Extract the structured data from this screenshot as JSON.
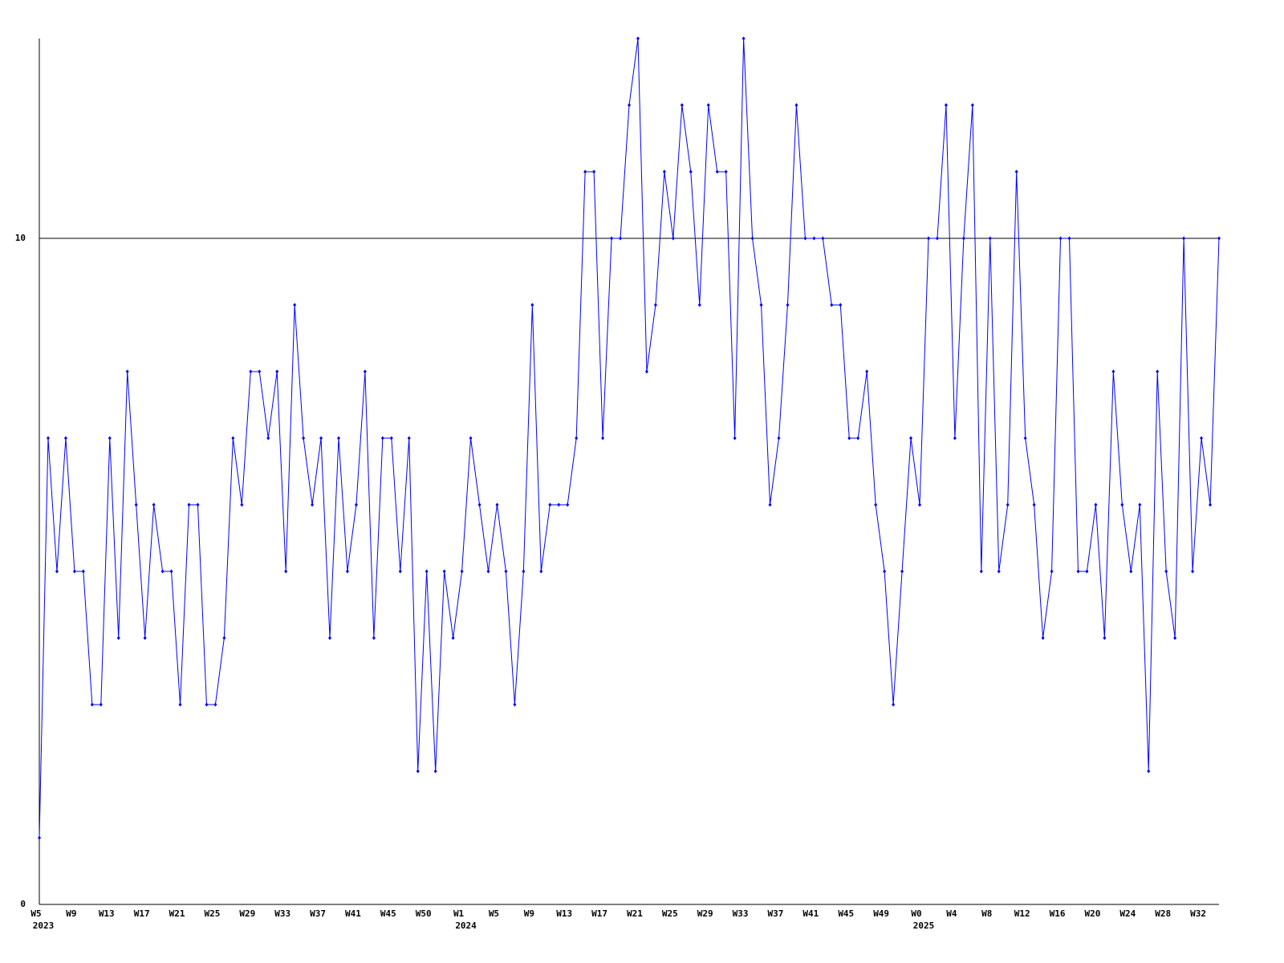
{
  "chart_data": {
    "type": "line",
    "categories": [
      "W5",
      null,
      null,
      null,
      "W9",
      null,
      null,
      null,
      "W13",
      null,
      null,
      null,
      "W17",
      null,
      null,
      null,
      "W21",
      null,
      null,
      null,
      "W25",
      null,
      null,
      null,
      "W29",
      null,
      null,
      null,
      "W33",
      null,
      null,
      null,
      "W37",
      null,
      null,
      null,
      "W41",
      null,
      null,
      null,
      "W45",
      null,
      null,
      null,
      "W50",
      null,
      null,
      null,
      "W1",
      null,
      null,
      null,
      "W5",
      null,
      null,
      null,
      "W9",
      null,
      null,
      null,
      "W13",
      null,
      null,
      null,
      "W17",
      null,
      null,
      null,
      "W21",
      null,
      null,
      null,
      "W25",
      null,
      null,
      null,
      "W29",
      null,
      null,
      null,
      "W33",
      null,
      null,
      null,
      "W37",
      null,
      null,
      null,
      "W41",
      null,
      null,
      null,
      "W45",
      null,
      null,
      null,
      "W49",
      null,
      null,
      null,
      "W0",
      null,
      null,
      null,
      "W4",
      null,
      null,
      null,
      "W8",
      null,
      null,
      null,
      "W12",
      null,
      null,
      null,
      "W16",
      null,
      null,
      null,
      "W20",
      null,
      null,
      null,
      "W24",
      null,
      null,
      null,
      "W28",
      null,
      null,
      null,
      "W32",
      null,
      null
    ],
    "category_years": [
      "2023",
      null,
      null,
      null,
      null,
      null,
      null,
      null,
      null,
      null,
      null,
      null,
      null,
      null,
      null,
      null,
      null,
      null,
      null,
      null,
      null,
      null,
      null,
      null,
      null,
      null,
      null,
      null,
      null,
      null,
      null,
      null,
      null,
      null,
      null,
      null,
      null,
      null,
      null,
      null,
      null,
      null,
      null,
      null,
      null,
      null,
      null,
      null,
      "2024",
      null,
      null,
      null,
      null,
      null,
      null,
      null,
      null,
      null,
      null,
      null,
      null,
      null,
      null,
      null,
      null,
      null,
      null,
      null,
      null,
      null,
      null,
      null,
      null,
      null,
      null,
      null,
      null,
      null,
      null,
      null,
      null,
      null,
      null,
      null,
      null,
      null,
      null,
      null,
      null,
      null,
      null,
      null,
      null,
      null,
      null,
      null,
      null,
      null,
      null,
      null,
      "2025",
      null,
      null,
      null,
      null,
      null,
      null,
      null,
      null,
      null,
      null,
      null,
      null,
      null,
      null,
      null,
      null,
      null,
      null,
      null,
      null,
      null,
      null,
      null,
      null,
      null,
      null,
      null,
      null,
      null,
      null,
      null,
      null,
      null,
      null
    ],
    "values": [
      1,
      7,
      5,
      7,
      5,
      5,
      3,
      3,
      7,
      4,
      8,
      6,
      4,
      6,
      5,
      5,
      3,
      6,
      6,
      3,
      3,
      4,
      7,
      6,
      8,
      8,
      7,
      8,
      5,
      9,
      7,
      6,
      7,
      4,
      7,
      5,
      6,
      8,
      4,
      7,
      7,
      5,
      7,
      2,
      5,
      2,
      5,
      4,
      5,
      7,
      6,
      5,
      6,
      5,
      3,
      5,
      9,
      5,
      6,
      6,
      6,
      7,
      11,
      11,
      7,
      10,
      10,
      12,
      13,
      8,
      9,
      11,
      10,
      12,
      11,
      9,
      12,
      11,
      11,
      7,
      13,
      10,
      9,
      6,
      7,
      9,
      12,
      10,
      10,
      10,
      9,
      9,
      7,
      7,
      8,
      6,
      5,
      3,
      5,
      7,
      6,
      10,
      10,
      12,
      7,
      10,
      12,
      5,
      10,
      5,
      6,
      11,
      7,
      6,
      4,
      5,
      10,
      10,
      5,
      5,
      6,
      4,
      8,
      6,
      5,
      6,
      2,
      8,
      5,
      4,
      10,
      5,
      7,
      6,
      10
    ],
    "color": "#0000ff",
    "ylim": [
      0,
      13
    ],
    "yticks": [
      0,
      10
    ],
    "grid": true
  }
}
